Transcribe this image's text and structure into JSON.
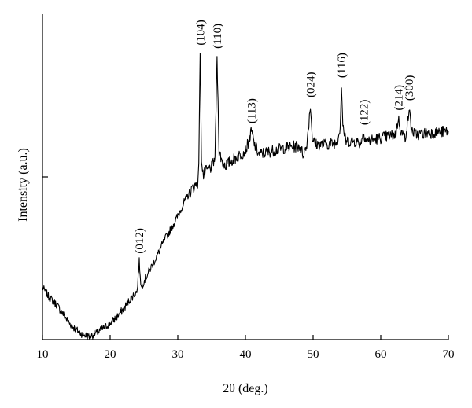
{
  "chart_data": {
    "type": "line",
    "title": "",
    "xlabel": "2θ (deg.)",
    "ylabel": "Intensity (a.u.)",
    "xlim": [
      10,
      70
    ],
    "ylim": [
      0,
      100
    ],
    "xticks": [
      10,
      20,
      30,
      40,
      50,
      60,
      70
    ],
    "yticks_unlabeled": [
      50
    ],
    "grid": false,
    "legend": "none",
    "line_color": "#000000",
    "series": [
      {
        "x": [
          10,
          11,
          12,
          13,
          14,
          15,
          16,
          17,
          18,
          19,
          20,
          21,
          22,
          23,
          24,
          24.3,
          24.6,
          25,
          26,
          27,
          28,
          29,
          30,
          31,
          32,
          33,
          33.1,
          33.3,
          33.5,
          33.8,
          34,
          35,
          35.5,
          35.8,
          36.1,
          36.5,
          37,
          38,
          39,
          40,
          40.5,
          40.9,
          41.3,
          42,
          44,
          46,
          48,
          48.5,
          49,
          49.3,
          49.6,
          49.9,
          50.3,
          52,
          53.5,
          54,
          54.2,
          54.4,
          54.8,
          56,
          57,
          57.5,
          57.9,
          59,
          61,
          62.2,
          62.6,
          63,
          63.6,
          64,
          64.2,
          64.5,
          65,
          67,
          70
        ],
        "y": [
          16,
          13,
          11,
          8,
          5,
          3,
          1.5,
          1,
          2,
          3.5,
          5,
          7,
          9.5,
          12.5,
          15,
          24,
          16,
          18,
          22,
          26,
          30.5,
          34,
          38,
          42.5,
          46,
          48.5,
          54,
          88,
          56,
          50,
          51.5,
          53,
          56,
          87,
          58,
          55,
          53.5,
          55,
          56.5,
          58,
          61,
          64,
          60,
          57,
          58,
          59,
          59.5,
          57,
          59,
          65,
          72,
          62,
          60,
          60,
          60.5,
          65,
          78,
          66,
          61,
          61,
          60.5,
          63.5,
          61,
          61.5,
          62.5,
          63,
          68,
          64,
          62,
          67,
          71,
          65,
          63,
          63.5,
          64
        ]
      }
    ],
    "peaks": [
      {
        "x": 24.3,
        "y": 24,
        "label": "(012)"
      },
      {
        "x": 33.3,
        "y": 88,
        "label": "(104)"
      },
      {
        "x": 35.8,
        "y": 87,
        "label": "(110)"
      },
      {
        "x": 40.9,
        "y": 64,
        "label": "(113)"
      },
      {
        "x": 49.6,
        "y": 72,
        "label": "(024)"
      },
      {
        "x": 54.2,
        "y": 78,
        "label": "(116)"
      },
      {
        "x": 57.5,
        "y": 63.5,
        "label": "(122)"
      },
      {
        "x": 62.6,
        "y": 68,
        "label": "(214)"
      },
      {
        "x": 64.2,
        "y": 71,
        "label": "(300)"
      }
    ]
  }
}
